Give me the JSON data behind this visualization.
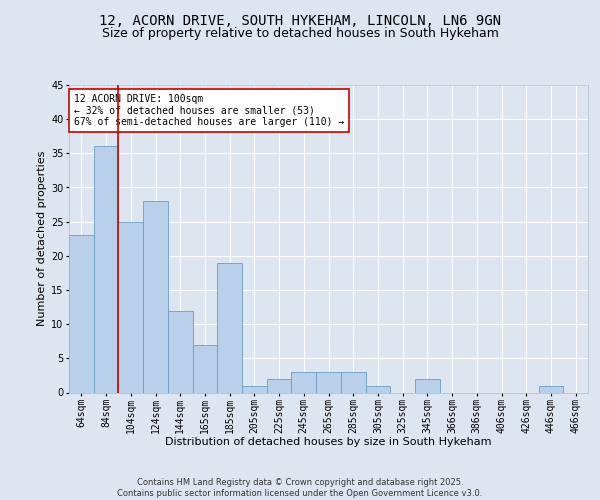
{
  "title1": "12, ACORN DRIVE, SOUTH HYKEHAM, LINCOLN, LN6 9GN",
  "title2": "Size of property relative to detached houses in South Hykeham",
  "xlabel": "Distribution of detached houses by size in South Hykeham",
  "ylabel": "Number of detached properties",
  "categories": [
    "64sqm",
    "84sqm",
    "104sqm",
    "124sqm",
    "144sqm",
    "165sqm",
    "185sqm",
    "205sqm",
    "225sqm",
    "245sqm",
    "265sqm",
    "285sqm",
    "305sqm",
    "325sqm",
    "345sqm",
    "366sqm",
    "386sqm",
    "406sqm",
    "426sqm",
    "446sqm",
    "466sqm"
  ],
  "values": [
    23,
    36,
    25,
    28,
    12,
    7,
    19,
    1,
    2,
    3,
    3,
    3,
    1,
    0,
    2,
    0,
    0,
    0,
    0,
    1,
    0
  ],
  "bar_color": "#b8d0ea",
  "bar_edge_color": "#6a9ec0",
  "redline_color": "#cc0000",
  "annotation_text": "12 ACORN DRIVE: 100sqm\n← 32% of detached houses are smaller (53)\n67% of semi-detached houses are larger (110) →",
  "annotation_box_color": "#ffffff",
  "annotation_border_color": "#cc0000",
  "ylim": [
    0,
    45
  ],
  "yticks": [
    0,
    5,
    10,
    15,
    20,
    25,
    30,
    35,
    40,
    45
  ],
  "bg_color": "#dde6f0",
  "plot_bg_color": "#dde6f0",
  "grid_color": "#ffffff",
  "footer": "Contains HM Land Registry data © Crown copyright and database right 2025.\nContains public sector information licensed under the Open Government Licence v3.0.",
  "title1_fontsize": 10,
  "title2_fontsize": 9,
  "xlabel_fontsize": 8,
  "ylabel_fontsize": 8,
  "tick_fontsize": 7,
  "footer_fontsize": 6,
  "annot_fontsize": 7
}
